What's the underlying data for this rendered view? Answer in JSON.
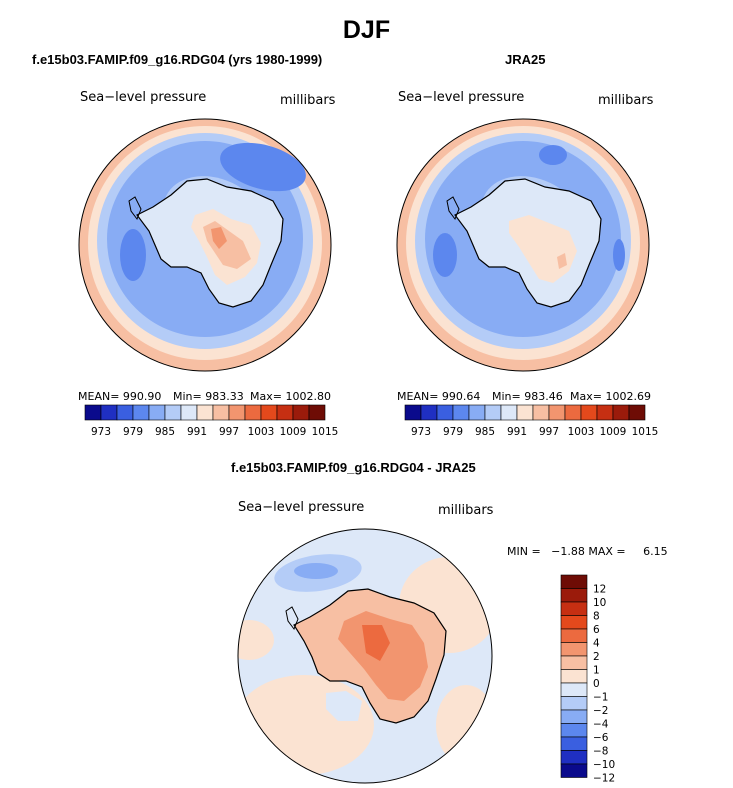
{
  "season": "DJF",
  "units": "millibars",
  "palette": [
    "#0a0a8c",
    "#1f2fc2",
    "#3a5fe0",
    "#5c87ee",
    "#88acf4",
    "#b4ccf7",
    "#dde8f8",
    "#fbe3d2",
    "#f7bfa3",
    "#f2956f",
    "#ec6a3f",
    "#e4491c",
    "#c62f12",
    "#9b1b0b",
    "#6e0c05"
  ],
  "chart_data": [
    {
      "type": "polar_contour_map",
      "title": "f.e15b03.FAMIP.f09_g16.RDG04 (yrs 1980-1999)",
      "variable": "Sea−level pressure",
      "units": "millibars",
      "mean_label": "MEAN= 990.90",
      "min_label": "Min= 983.33",
      "max_label": "Max= 1002.80",
      "stats": {
        "mean": 990.9,
        "min": 983.33,
        "max": 1002.8
      },
      "colorbar_ticks": [
        "973",
        "979",
        "985",
        "991",
        "997",
        "1003",
        "1009",
        "1015"
      ]
    },
    {
      "type": "polar_contour_map",
      "title": "JRA25",
      "variable": "Sea−level pressure",
      "units": "millibars",
      "mean_label": "MEAN= 990.64",
      "min_label": "Min= 983.46",
      "max_label": "Max= 1002.69",
      "stats": {
        "mean": 990.64,
        "min": 983.46,
        "max": 1002.69
      },
      "colorbar_ticks": [
        "973",
        "979",
        "985",
        "991",
        "997",
        "1003",
        "1009",
        "1015"
      ]
    },
    {
      "type": "polar_contour_map",
      "title": "f.e15b03.FAMIP.f09_g16.RDG04 - JRA25",
      "variable": "Sea−level pressure",
      "units": "millibars",
      "minmax_label": "MIN =   −1.88 MAX =     6.15",
      "stats": {
        "min": -1.88,
        "max": 6.15
      },
      "colorbar_ticks": [
        "12",
        "10",
        "8",
        "6",
        "4",
        "2",
        "1",
        "0",
        "−1",
        "−2",
        "−4",
        "−6",
        "−8",
        "−10",
        "−12"
      ]
    }
  ]
}
